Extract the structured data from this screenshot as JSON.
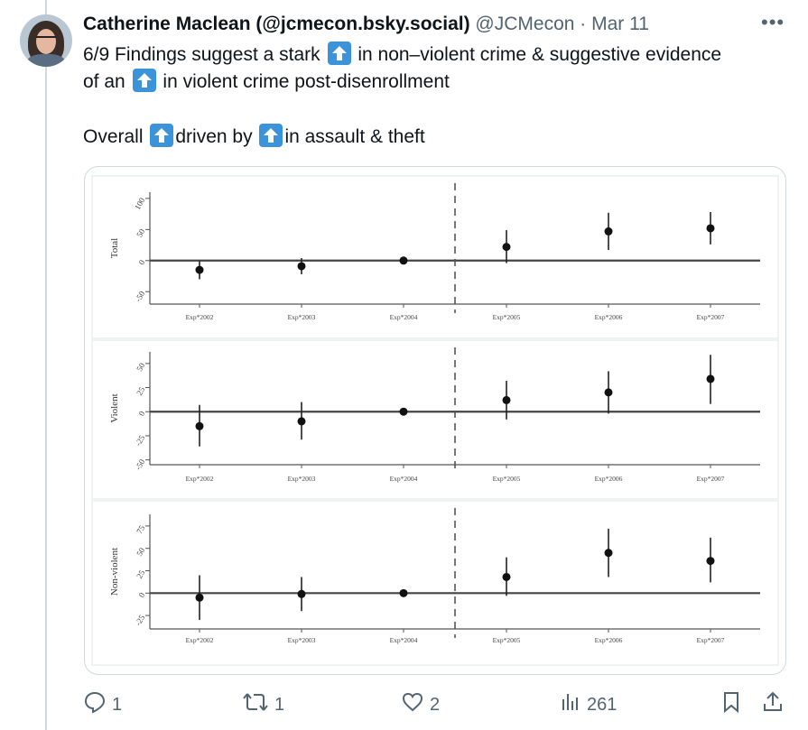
{
  "post": {
    "author_name": "Catherine Maclean (@jcmecon.bsky.social)",
    "handle": "@JCMecon",
    "separator": "·",
    "date": "Mar 11",
    "more_label": "•••",
    "line1_a": "6/9 Findings suggest a stark",
    "line1_b": "in non–violent crime & suggestive evidence",
    "line2_a": "of an",
    "line2_b": "in violent crime post-disenrollment",
    "line3_a": "Overall",
    "line3_b": "driven by",
    "line3_c": "in assault & theft",
    "arrow_icon": "up-arrow-emoji-icon"
  },
  "chart_data": [
    {
      "type": "scatter",
      "title": "",
      "ylabel": "Total",
      "categories": [
        "Exp*2002",
        "Exp*2003",
        "Exp*2004",
        "Exp*2005",
        "Exp*2006",
        "Exp*2007"
      ],
      "estimates": [
        -15,
        -9,
        0,
        22,
        47,
        52
      ],
      "ci_low": [
        -30,
        -22,
        0,
        -4,
        17,
        26
      ],
      "ci_high": [
        -1,
        4,
        0,
        49,
        77,
        78
      ],
      "yticks": [
        "-50",
        "0",
        "50",
        "100"
      ],
      "ylim": [
        -70,
        110
      ],
      "vline_after": "Exp*2004"
    },
    {
      "type": "scatter",
      "title": "",
      "ylabel": "Violent",
      "categories": [
        "Exp*2002",
        "Exp*2003",
        "Exp*2004",
        "Exp*2005",
        "Exp*2006",
        "Exp*2007"
      ],
      "estimates": [
        -15,
        -10,
        0,
        12,
        20,
        34
      ],
      "ci_low": [
        -36,
        -29,
        0,
        -8,
        -2,
        8
      ],
      "ci_high": [
        7,
        10,
        0,
        32,
        42,
        59
      ],
      "yticks": [
        "-50",
        "-25",
        "0",
        "25",
        "50"
      ],
      "ylim": [
        -55,
        62
      ],
      "vline_after": "Exp*2004"
    },
    {
      "type": "scatter",
      "title": "",
      "ylabel": "Non-violent",
      "categories": [
        "Exp*2002",
        "Exp*2003",
        "Exp*2004",
        "Exp*2005",
        "Exp*2006",
        "Exp*2007"
      ],
      "estimates": [
        -5,
        -1,
        0,
        18,
        45,
        36
      ],
      "ci_low": [
        -30,
        -20,
        0,
        -3,
        18,
        12
      ],
      "ci_high": [
        20,
        18,
        0,
        40,
        72,
        62
      ],
      "yticks": [
        "-25",
        "0",
        "25",
        "50",
        "75"
      ],
      "ylim": [
        -40,
        88
      ],
      "vline_after": "Exp*2004"
    }
  ],
  "actions": {
    "reply_count": "1",
    "repost_count": "1",
    "like_count": "2",
    "views_count": "261"
  },
  "colors": {
    "text": "#0f1419",
    "muted": "#536471",
    "border": "#cfd9de",
    "arrow_emoji": "#3b94d9"
  }
}
